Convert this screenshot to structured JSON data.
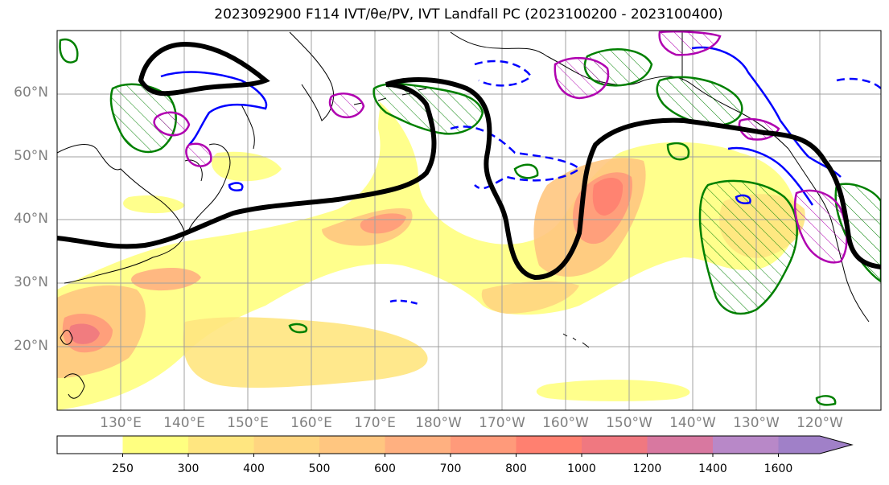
{
  "title": "2023092900 F114 IVT/θe/PV, IVT Landfall PC (2023100200 - 2023100400)",
  "map": {
    "lat_labels": [
      "60°N",
      "50°N",
      "40°N",
      "30°N",
      "20°N"
    ],
    "lon_labels": [
      "130°E",
      "140°E",
      "150°E",
      "160°E",
      "170°E",
      "180°W",
      "170°W",
      "160°W",
      "150°W",
      "140°W",
      "130°W",
      "120°W"
    ],
    "extent": {
      "lon_min": 120,
      "lon_max": 250,
      "lat_min": 10,
      "lat_max": 70
    },
    "contour_colors": {
      "theta_e": "#008000",
      "pv_negative": "#0000ff",
      "pv_positive": "#b000b0",
      "landfall_pc": "#000000"
    }
  },
  "colorbar": {
    "levels": [
      "250",
      "300",
      "400",
      "500",
      "600",
      "700",
      "800",
      "1000",
      "1200",
      "1400",
      "1600"
    ],
    "colors": [
      "#ffffff",
      "#ffff80",
      "#ffe680",
      "#ffd580",
      "#ffc680",
      "#ffb080",
      "#ff9a7a",
      "#ff8070",
      "#f07880",
      "#d878a0",
      "#b888c8",
      "#a080c8"
    ]
  }
}
